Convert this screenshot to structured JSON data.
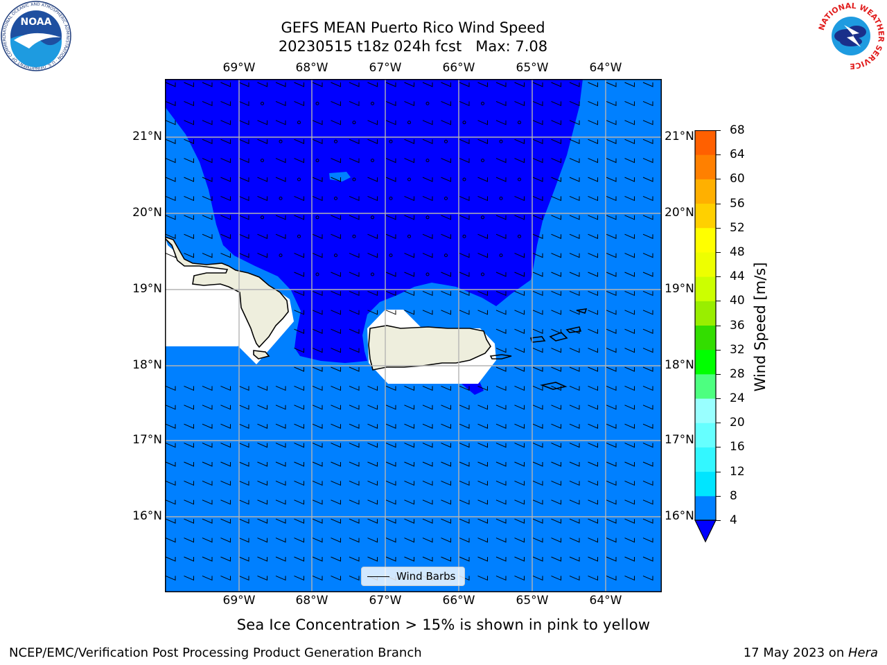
{
  "title": {
    "line1": "GEFS MEAN Puerto Rico Wind Speed",
    "line2": "20230515 t18z 024h fcst   Max: 7.08"
  },
  "axes": {
    "lon_labels": [
      "69°W",
      "68°W",
      "67°W",
      "66°W",
      "65°W",
      "64°W"
    ],
    "lat_labels": [
      "21°N",
      "20°N",
      "19°N",
      "18°N",
      "17°N",
      "16°N"
    ]
  },
  "colorbar": {
    "label": "Wind Speed [m/s]",
    "ticks": [
      "4",
      "8",
      "12",
      "16",
      "20",
      "24",
      "28",
      "32",
      "36",
      "40",
      "44",
      "48",
      "52",
      "56",
      "60",
      "64",
      "68"
    ],
    "colors": [
      "#0000ff",
      "#0080ff",
      "#00e5ff",
      "#33f7ff",
      "#66ffff",
      "#99ffff",
      "#4dff80",
      "#00ff00",
      "#33dd00",
      "#99ee00",
      "#ccff00",
      "#eeff00",
      "#ffff00",
      "#ffd000",
      "#ffb000",
      "#ff8000",
      "#ff6000",
      "#ff3000",
      "#ff0000"
    ],
    "underflow_color": "#0000ff"
  },
  "map": {
    "ocean_color": "#0080ff",
    "calm_color": "#0000ff",
    "land_color": "#eeeedd",
    "masked_color": "#ffffff"
  },
  "legend": {
    "label": "Wind Barbs"
  },
  "caption": "Sea Ice Concentration > 15% is shown in pink to yellow",
  "footer": {
    "left": "NCEP/EMC/Verification Post Processing Product Generation Branch",
    "date_prefix": "17 May 2023 on ",
    "date_machine": "Hera"
  },
  "logos": {
    "noaa_text": "NOAA",
    "noaa_ring": "NATIONAL OCEANIC AND ATMOSPHERIC ADMINISTRATION · U.S. DEPARTMENT OF COMMERCE",
    "nws_ring": "NATIONAL WEATHER SERVICE"
  }
}
